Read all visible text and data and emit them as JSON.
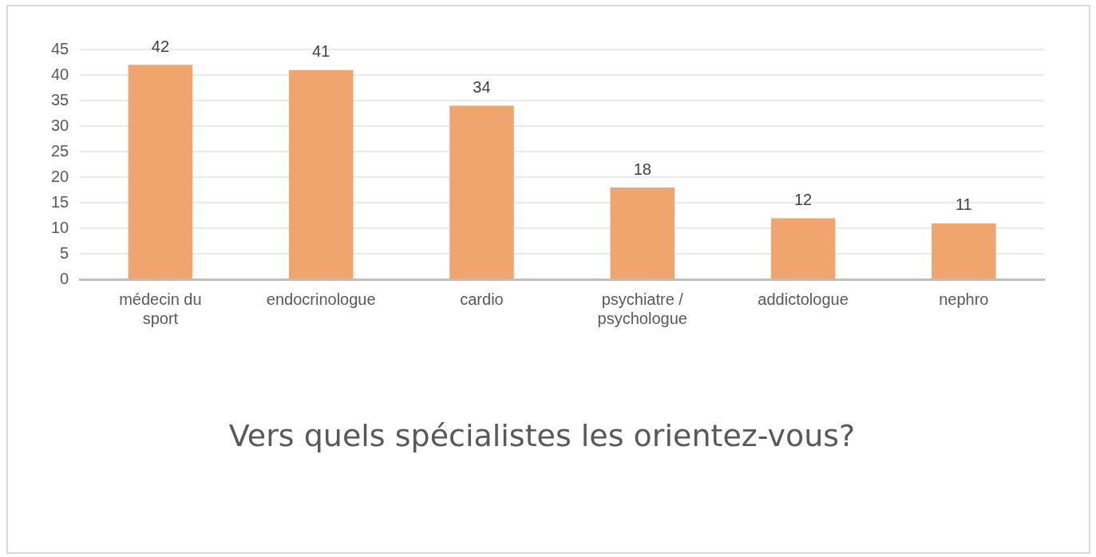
{
  "chart_data": {
    "type": "bar",
    "title": "Vers quels spécialistes les orientez-vous?",
    "categories": [
      "médecin du sport",
      "endocrinologue",
      "cardio",
      "psychiatre / psychologue",
      "addictologue",
      "nephro"
    ],
    "values": [
      42,
      41,
      34,
      18,
      12,
      11
    ],
    "color": "#f0a46e",
    "ylim": [
      0,
      45
    ],
    "yticks": [
      0,
      5,
      10,
      15,
      20,
      25,
      30,
      35,
      40,
      45
    ],
    "grid": "y",
    "data_labels": true,
    "legend": false
  }
}
